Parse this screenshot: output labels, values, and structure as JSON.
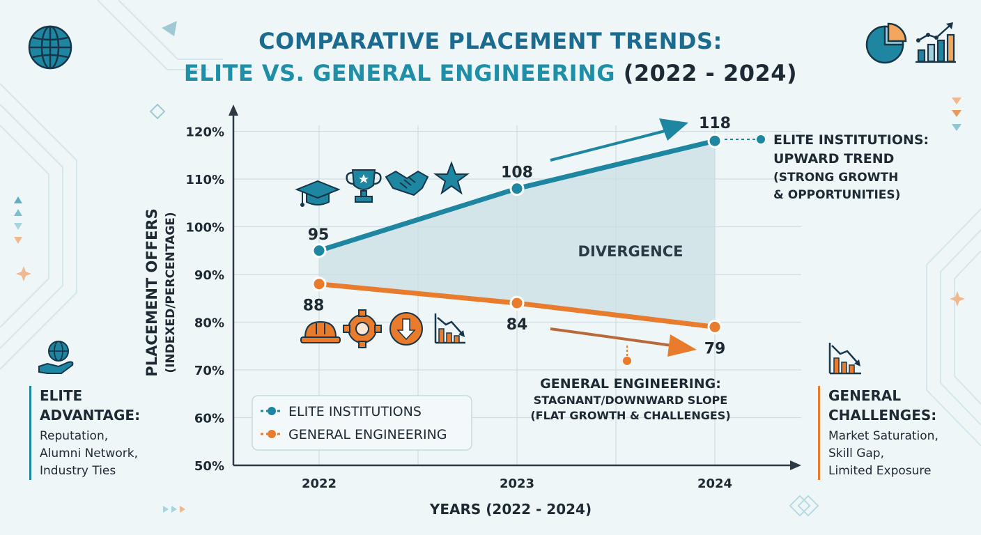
{
  "title": {
    "line1": "COMPARATIVE PLACEMENT TRENDS:",
    "line2_main": "ELITE VS. GENERAL ENGINEERING",
    "line2_years": "(2022 - 2024)"
  },
  "chart_data": {
    "type": "line",
    "x": [
      "2022",
      "2023",
      "2024"
    ],
    "series": [
      {
        "name": "ELITE INSTITUTIONS",
        "values": [
          95,
          108,
          118
        ],
        "color": "#1e86a0"
      },
      {
        "name": "GENERAL ENGINEERING",
        "values": [
          88,
          84,
          79
        ],
        "color": "#e87b2c"
      }
    ],
    "xlabel": "YEARS (2022 - 2024)",
    "ylabel_line1": "PLACEMENT OFFERS",
    "ylabel_line2": "(INDEXED/PERCENTAGE)",
    "ylim": [
      50,
      120
    ],
    "yticks": [
      "50%",
      "60%",
      "70%",
      "80%",
      "90%",
      "100%",
      "110%",
      "120%"
    ],
    "grid": true,
    "legend_position": "bottom-left",
    "shaded_region_label": "DIVERGENCE"
  },
  "annotations": {
    "elite": {
      "heading_line1": "ELITE INSTITUTIONS:",
      "heading_line2": "UPWARD TREND",
      "sub_line1": "(STRONG GROWTH",
      "sub_line2": "& OPPORTUNITIES)"
    },
    "general": {
      "heading": "GENERAL ENGINEERING:",
      "sub_line1": "STAGNANT/DOWNWARD SLOPE",
      "sub_line2": "(FLAT GROWTH & CHALLENGES)"
    }
  },
  "left_panel": {
    "heading_line1": "ELITE",
    "heading_line2": "ADVANTAGE:",
    "items": [
      "Reputation,",
      "Alumni Network,",
      "Industry Ties"
    ]
  },
  "right_panel": {
    "heading_line1": "GENERAL",
    "heading_line2": "CHALLENGES:",
    "items": [
      "Market Saturation,",
      "Skill Gap,",
      "Limited Exposure"
    ]
  },
  "icons": {
    "top_left": "globe-icon",
    "top_right": [
      "pie-chart-icon",
      "bar-chart-up-icon"
    ],
    "elite_row": [
      "graduation-cap-icon",
      "trophy-icon",
      "handshake-icon",
      "star-icon"
    ],
    "general_row": [
      "hard-hat-icon",
      "gear-icon",
      "down-arrow-circle-icon",
      "declining-chart-icon"
    ],
    "left_panel": "globe-hand-icon",
    "right_panel": "declining-chart-icon"
  },
  "colors": {
    "elite": "#1e86a0",
    "general": "#e87b2c",
    "shade": "#c9dfe3"
  }
}
